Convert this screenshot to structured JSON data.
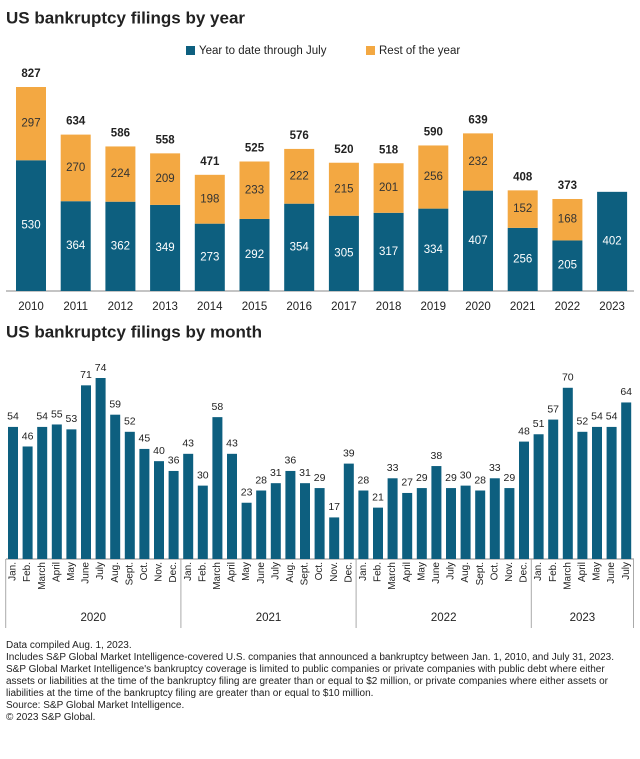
{
  "chart_data": [
    {
      "type": "stacked_bar",
      "title": "US bankruptcy filings by year",
      "categories": [
        "2010",
        "2011",
        "2012",
        "2013",
        "2014",
        "2015",
        "2016",
        "2017",
        "2018",
        "2019",
        "2020",
        "2021",
        "2022",
        "2023"
      ],
      "series": [
        {
          "name": "Year to date through July",
          "color": "#0d5f7f",
          "values": [
            530,
            364,
            362,
            349,
            273,
            292,
            354,
            305,
            317,
            334,
            407,
            256,
            205,
            402
          ]
        },
        {
          "name": "Rest of the year",
          "color": "#f3a842",
          "values": [
            297,
            270,
            224,
            209,
            198,
            233,
            222,
            215,
            201,
            256,
            232,
            152,
            168,
            null
          ]
        }
      ],
      "totals": [
        827,
        634,
        586,
        558,
        471,
        525,
        576,
        520,
        518,
        590,
        639,
        408,
        373,
        null
      ]
    },
    {
      "type": "grouped_bar",
      "title": "US bankruptcy filings by month",
      "color": "#0d5f7f",
      "groups": [
        {
          "name": "2020",
          "categories": [
            "Jan.",
            "Feb.",
            "March",
            "April",
            "May",
            "June",
            "July",
            "Aug.",
            "Sept.",
            "Oct.",
            "Nov.",
            "Dec."
          ],
          "values": [
            54,
            46,
            54,
            55,
            53,
            71,
            74,
            59,
            52,
            45,
            40,
            36
          ]
        },
        {
          "name": "2021",
          "categories": [
            "Jan.",
            "Feb.",
            "March",
            "April",
            "May",
            "June",
            "July",
            "Aug.",
            "Sept.",
            "Oct.",
            "Nov.",
            "Dec."
          ],
          "values": [
            43,
            30,
            58,
            43,
            23,
            28,
            31,
            36,
            31,
            29,
            17,
            39
          ]
        },
        {
          "name": "2022",
          "categories": [
            "Jan.",
            "Feb.",
            "March",
            "April",
            "May",
            "June",
            "July",
            "Aug.",
            "Sept.",
            "Oct.",
            "Nov.",
            "Dec."
          ],
          "values": [
            28,
            21,
            33,
            27,
            29,
            38,
            29,
            30,
            28,
            33,
            29,
            48
          ]
        },
        {
          "name": "2023",
          "categories": [
            "Jan.",
            "Feb.",
            "March",
            "April",
            "May",
            "June",
            "July"
          ],
          "values": [
            51,
            57,
            70,
            52,
            54,
            54,
            64
          ]
        }
      ]
    }
  ],
  "notes": [
    "Data compiled Aug. 1, 2023.",
    "Includes S&P Global Market Intelligence-covered U.S. companies that announced a bankruptcy between Jan. 1, 2010, and July 31, 2023.",
    "S&P Global Market Intelligence's bankruptcy coverage is limited to public companies or private companies with public debt where either assets or liabilities at the time of the bankruptcy filing are greater than or equal to $2 million, or private companies where either assets or liabilities at the time of the bankruptcy filing are greater than or equal to $10 million.",
    "Source: S&P Global Market Intelligence.",
    "© 2023 S&P Global."
  ]
}
